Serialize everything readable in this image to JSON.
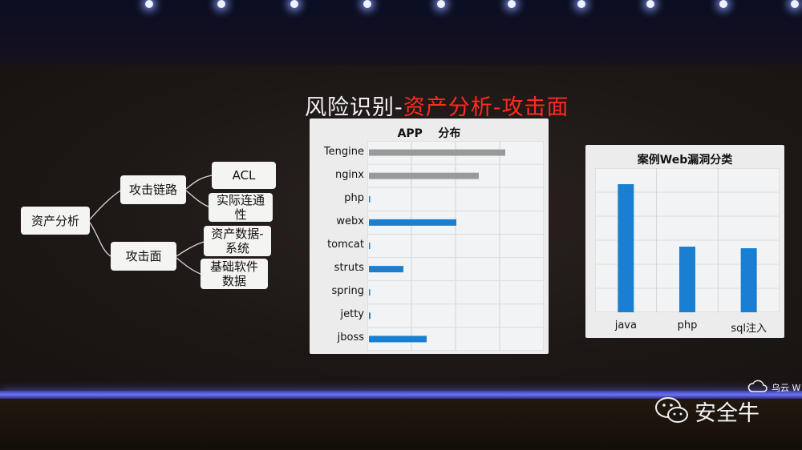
{
  "slide_title": {
    "part1": "风险识别-",
    "part2": "资产分析-攻击面"
  },
  "mindmap": {
    "root": "资产分析",
    "branch1": "攻击链路",
    "branch1_children": [
      "ACL",
      "实际连通性"
    ],
    "branch2": "攻击面",
    "branch2_children": [
      "资产数据-系统",
      "基础软件数据"
    ]
  },
  "chart_data": [
    {
      "type": "bar",
      "orientation": "horizontal",
      "title": "APP    分布",
      "categories": [
        "Tengine",
        "nginx",
        "php",
        "webx",
        "tomcat",
        "struts",
        "spring",
        "jetty",
        "jboss"
      ],
      "values": [
        170,
        137,
        0,
        109,
        1,
        43,
        0,
        2,
        72
      ],
      "xlim": [
        0,
        220
      ],
      "bar_colors": [
        "#9a9a9a",
        "#9a9a9a",
        "#1a7fd0",
        "#1a7fd0",
        "#1a7fd0",
        "#1a7fd0",
        "#1a7fd0",
        "#1a7fd0",
        "#1a7fd0"
      ],
      "grid": true
    },
    {
      "type": "bar",
      "title": "案例Web漏洞分类",
      "categories": [
        "java",
        "php",
        "sql注入"
      ],
      "values": [
        160,
        82,
        80
      ],
      "ylim": [
        0,
        180
      ],
      "bar_color": "#1a7fd0",
      "grid": true
    }
  ],
  "watermark": {
    "top": "乌云 W",
    "main": "安全牛"
  },
  "colors": {
    "accent_red": "#ff2b1e",
    "bar_blue": "#1a7fd0",
    "bar_gray": "#9a9a9a"
  }
}
